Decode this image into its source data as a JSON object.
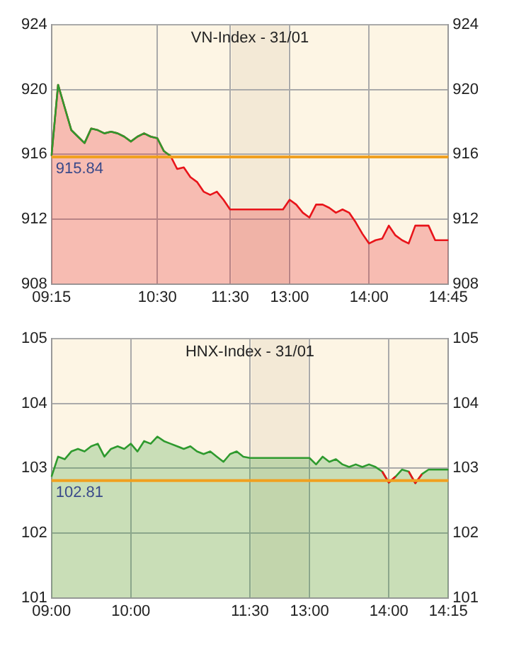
{
  "chart_data": [
    {
      "type": "area",
      "title": "VN-Index - 31/01",
      "categories": [
        "09:15",
        null,
        null,
        null,
        null,
        null,
        null,
        null,
        null,
        null,
        null,
        null,
        null,
        null,
        null,
        null,
        "10:30",
        null,
        null,
        null,
        null,
        null,
        null,
        null,
        null,
        null,
        null,
        "11:30",
        null,
        null,
        null,
        null,
        null,
        null,
        null,
        null,
        "13:00",
        null,
        null,
        null,
        null,
        null,
        null,
        null,
        null,
        null,
        null,
        null,
        "14:00",
        null,
        null,
        null,
        null,
        null,
        null,
        null,
        null,
        null,
        null,
        null,
        "14:45"
      ],
      "series": [
        {
          "color": "#e8141a",
          "values": [
            915.9,
            920.3,
            918.9,
            917.5,
            917.1,
            916.7,
            917.6,
            917.5,
            917.3,
            917.4,
            917.3,
            917.1,
            916.8,
            917.1,
            917.3,
            917.1,
            917.0,
            916.2,
            915.9,
            915.1,
            915.2,
            914.6,
            914.3,
            913.7,
            913.5,
            913.7,
            913.2,
            912.6,
            912.6,
            912.6,
            912.6,
            912.6,
            912.6,
            912.6,
            912.6,
            912.6,
            913.2,
            912.9,
            912.4,
            912.1,
            912.9,
            912.9,
            912.7,
            912.4,
            912.6,
            912.4,
            911.8,
            911.1,
            910.5,
            910.7,
            910.8,
            911.6,
            911.0,
            910.7,
            910.5,
            911.6,
            911.6,
            911.6,
            910.7,
            910.7,
            910.7
          ]
        },
        {
          "type": "line",
          "color": "#2e9a2e",
          "values": [
            915.9,
            920.3,
            918.9,
            917.5,
            917.1,
            916.7,
            917.6,
            917.5,
            917.3,
            917.4,
            917.3,
            917.1,
            916.8,
            917.1,
            917.3,
            917.1,
            917.0,
            916.2,
            915.9,
            null,
            null,
            null,
            null,
            null,
            null,
            null,
            null,
            null,
            null,
            null,
            null,
            null,
            null,
            null,
            null,
            null,
            null,
            null,
            null,
            null,
            null,
            null,
            null,
            null,
            null,
            null,
            null,
            null,
            null,
            null,
            null,
            null,
            null,
            null,
            null,
            null,
            null,
            null,
            null,
            null,
            null
          ]
        }
      ],
      "ylim": [
        908,
        924
      ],
      "yticks": [
        908,
        912,
        916,
        920,
        924
      ],
      "y2lim": [
        908,
        924
      ],
      "y2ticks": [
        908,
        912,
        916,
        920,
        924
      ],
      "ref_lines": [
        {
          "axis": "y",
          "value": 915.84,
          "label": "915.84",
          "color": "#f0a020"
        }
      ],
      "bands": [
        {
          "axis": "x",
          "from": "11:30",
          "to": "13:00",
          "color": "#f3e9d6"
        }
      ],
      "grid": true,
      "legend": false
    },
    {
      "type": "area",
      "title": "HNX-Index - 31/01",
      "categories": [
        "09:00",
        null,
        null,
        null,
        null,
        null,
        null,
        null,
        null,
        null,
        null,
        null,
        "10:00",
        null,
        null,
        null,
        null,
        null,
        null,
        null,
        null,
        null,
        null,
        null,
        null,
        null,
        null,
        null,
        null,
        null,
        "11:30",
        null,
        null,
        null,
        null,
        null,
        null,
        null,
        null,
        "13:00",
        null,
        null,
        null,
        null,
        null,
        null,
        null,
        null,
        null,
        null,
        null,
        "14:00",
        null,
        null,
        null,
        null,
        null,
        null,
        null,
        null,
        "14:15"
      ],
      "series": [
        {
          "color": "#2e9a2e",
          "values": [
            102.87,
            103.18,
            103.14,
            103.26,
            103.3,
            103.26,
            103.34,
            103.38,
            103.18,
            103.3,
            103.34,
            103.3,
            103.38,
            103.26,
            103.42,
            103.38,
            103.49,
            103.42,
            103.38,
            103.34,
            103.3,
            103.34,
            103.26,
            103.22,
            103.26,
            103.18,
            103.1,
            103.22,
            103.26,
            103.18,
            103.16,
            103.16,
            103.16,
            103.16,
            103.16,
            103.16,
            103.16,
            103.16,
            103.16,
            103.16,
            103.06,
            103.18,
            103.1,
            103.14,
            103.06,
            103.02,
            103.06,
            103.02,
            103.06,
            103.02,
            102.95,
            102.78,
            102.87,
            102.98,
            102.95,
            102.77,
            102.91,
            102.98,
            102.98,
            102.98,
            102.98
          ]
        },
        {
          "type": "line",
          "color": "#e8141a",
          "values": [
            null,
            null,
            null,
            null,
            null,
            null,
            null,
            null,
            null,
            null,
            null,
            null,
            null,
            null,
            null,
            null,
            null,
            null,
            null,
            null,
            null,
            null,
            null,
            null,
            null,
            null,
            null,
            null,
            null,
            null,
            null,
            null,
            null,
            null,
            null,
            null,
            null,
            null,
            null,
            null,
            null,
            null,
            null,
            null,
            null,
            null,
            null,
            null,
            null,
            null,
            102.95,
            102.78,
            102.87,
            null,
            102.95,
            102.77,
            102.91,
            null,
            null,
            null,
            null
          ]
        }
      ],
      "ylim": [
        101,
        105
      ],
      "yticks": [
        101,
        102,
        103,
        104,
        105
      ],
      "y2lim": [
        101,
        105
      ],
      "y2ticks": [
        101,
        102,
        103,
        104,
        105
      ],
      "ref_lines": [
        {
          "axis": "y",
          "value": 102.81,
          "label": "102.81",
          "color": "#f0a020"
        }
      ],
      "bands": [
        {
          "axis": "x",
          "from": "11:30",
          "to": "13:00",
          "color": "#f3e9d6"
        }
      ],
      "grid": true,
      "legend": false
    }
  ]
}
